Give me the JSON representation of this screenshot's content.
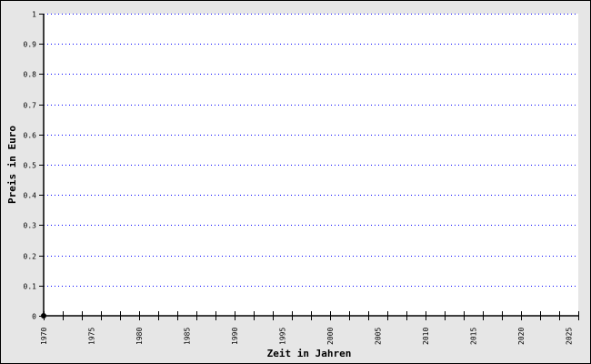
{
  "chart_data": {
    "type": "line",
    "xlabel": "Zeit in Jahren",
    "ylabel": "Preis in Euro",
    "xlim": [
      1970,
      2026
    ],
    "ylim": [
      0,
      1
    ],
    "x_ticks_minor_step": 2,
    "x_tick_labels": [
      "1970",
      "1975",
      "1980",
      "1985",
      "1990",
      "1995",
      "2000",
      "2005",
      "2010",
      "2015",
      "2020",
      "2025"
    ],
    "y_tick_labels": [
      "0",
      "0.1",
      "0.2",
      "0.3",
      "0.4",
      "0.5",
      "0.6",
      "0.7",
      "0.8",
      "0.9",
      "1"
    ],
    "grid": "horizontal dotted",
    "series": [
      {
        "x": [
          1970
        ],
        "y": [
          0
        ]
      }
    ],
    "colors": {
      "grid": "#0000ff",
      "background": "#e6e6e6",
      "plot": "#ffffff",
      "point": "#000000"
    }
  }
}
